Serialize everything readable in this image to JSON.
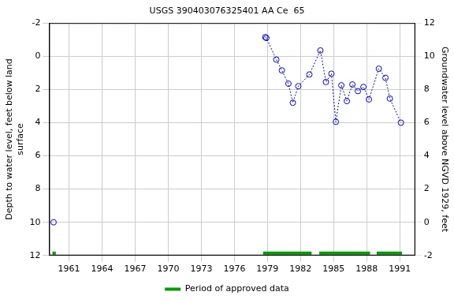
{
  "chart_data": {
    "type": "scatter",
    "title": "USGS 390403076325401 AA Ce  65",
    "y_label": [
      "Depth to water level, feet below land",
      "surface"
    ],
    "y2_label": "Groundwater level above NGVD 1929, feet",
    "series": [
      {
        "x": [
          1959.6
        ],
        "values": [
          10.0
        ],
        "color": "#0000ff",
        "marker": "circle",
        "line_style": "dotted"
      },
      {
        "x": [
          1978.8,
          1978.9,
          1979.8,
          1980.3,
          1980.9,
          1981.3,
          1981.8,
          1982.8,
          1983.8,
          1984.3,
          1984.8,
          1985.2,
          1985.7,
          1986.2,
          1986.7,
          1987.2,
          1987.7,
          1988.2,
          1989.1,
          1989.7,
          1990.1,
          1991.1
        ],
        "values": [
          -1.15,
          -1.1,
          0.2,
          0.85,
          1.65,
          2.8,
          1.8,
          1.1,
          -0.35,
          1.55,
          1.05,
          3.95,
          1.75,
          2.7,
          1.7,
          2.1,
          1.85,
          2.6,
          0.75,
          1.3,
          2.55,
          4.0
        ],
        "color": "#0000ff",
        "marker": "circle",
        "line_style": "dotted"
      }
    ],
    "approved_periods": {
      "name": "Period of approved data",
      "color": "#00a000",
      "periods": [
        [
          1959.5,
          1959.8
        ],
        [
          1978.6,
          1983.0
        ],
        [
          1983.7,
          1988.3
        ],
        [
          1988.9,
          1991.2
        ]
      ]
    },
    "xlim": [
      1959.2,
      1992.4
    ],
    "xticks": [
      1961,
      1964,
      1967,
      1970,
      1973,
      1976,
      1979,
      1982,
      1985,
      1988,
      1991
    ],
    "ylim": [
      12,
      -2
    ],
    "yticks": [
      -2,
      0,
      2,
      4,
      6,
      8,
      10,
      12
    ],
    "y2lim": [
      -2,
      12
    ],
    "y2ticks": [
      -2,
      0,
      2,
      4,
      6,
      8,
      10,
      12
    ],
    "grid": true,
    "legend": "bottom"
  }
}
